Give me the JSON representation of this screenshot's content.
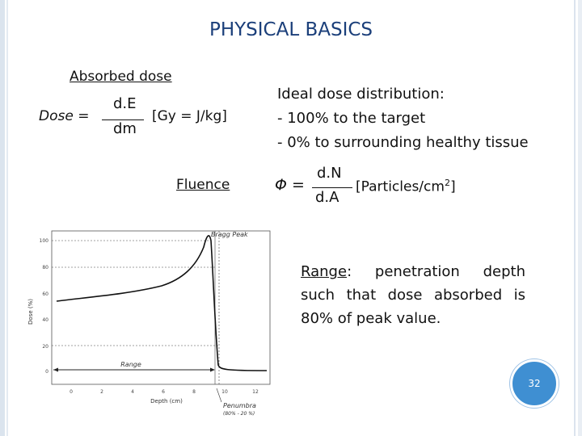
{
  "slide": {
    "title": "PHYSICAL BASICS",
    "absorbed_label": "Absorbed dose",
    "dose_equation": {
      "lhs": "Dose =",
      "numerator": "d.E",
      "denominator": "dm",
      "unit": "[Gy = J/kg]"
    },
    "fluence_label": "Fluence",
    "ideal": {
      "heading": "Ideal dose distribution:",
      "line1": "- 100% to the target",
      "line2": "- 0% to surrounding healthy tissue"
    },
    "fluence_equation": {
      "lhs": "Φ =",
      "numerator": "d.N",
      "denominator": "d.A",
      "unit_prefix": "[Particles/cm",
      "unit_sup": "2",
      "unit_suffix": "]"
    },
    "range": {
      "keyword": "Range",
      "text": ": penetration depth such that dose absorbed is 80% of peak value."
    },
    "page_number": "32"
  },
  "graph": {
    "ylabel": "Dose (%)",
    "xlabel": "Depth (cm)",
    "y_ticks": [
      "0",
      "20",
      "40",
      "60",
      "80",
      "100"
    ],
    "x_ticks": [
      "0",
      "2",
      "4",
      "6",
      "8",
      "10",
      "12"
    ],
    "bragg_peak_label": "Bragg Peak",
    "range_label": "Range",
    "penumbra_label": "Penumbra",
    "penumbra_sub": "(80% - 20 %)"
  },
  "colors": {
    "title": "#1b3f7a",
    "page_badge": "#3f8fd2"
  }
}
